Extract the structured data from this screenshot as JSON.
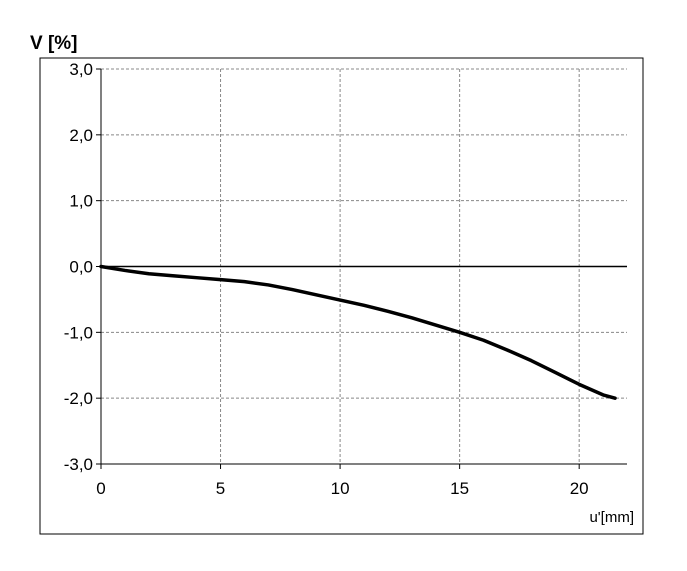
{
  "chart_data": {
    "type": "line",
    "title": "",
    "ylabel": "V [%]",
    "xlabel": "u'[mm]",
    "xlim": [
      0,
      22
    ],
    "ylim": [
      -3,
      3
    ],
    "x_ticks": [
      0,
      5,
      10,
      15,
      20
    ],
    "x_tick_labels": [
      "0",
      "5",
      "10",
      "15",
      "20"
    ],
    "y_ticks": [
      3,
      2,
      1,
      0,
      -1,
      -2,
      -3
    ],
    "y_tick_labels": [
      "3,0",
      "2,0",
      "1,0",
      "0,0",
      "-1,0",
      "-2,0",
      "-3,0"
    ],
    "grid": true,
    "legend": "none",
    "colors": {
      "series": "#000000",
      "grid": "#888888",
      "zero_line": "#000000"
    },
    "series": [
      {
        "x": [
          0,
          1,
          2,
          3,
          4,
          5,
          6,
          7,
          8,
          9,
          10,
          11,
          12,
          13,
          14,
          15,
          16,
          17,
          18,
          19,
          20,
          21,
          21.5
        ],
        "y": [
          0,
          -0.06,
          -0.11,
          -0.14,
          -0.17,
          -0.2,
          -0.23,
          -0.28,
          -0.35,
          -0.43,
          -0.51,
          -0.59,
          -0.68,
          -0.78,
          -0.89,
          -1.0,
          -1.12,
          -1.27,
          -1.43,
          -1.61,
          -1.79,
          -1.95,
          -2.0
        ]
      }
    ]
  }
}
